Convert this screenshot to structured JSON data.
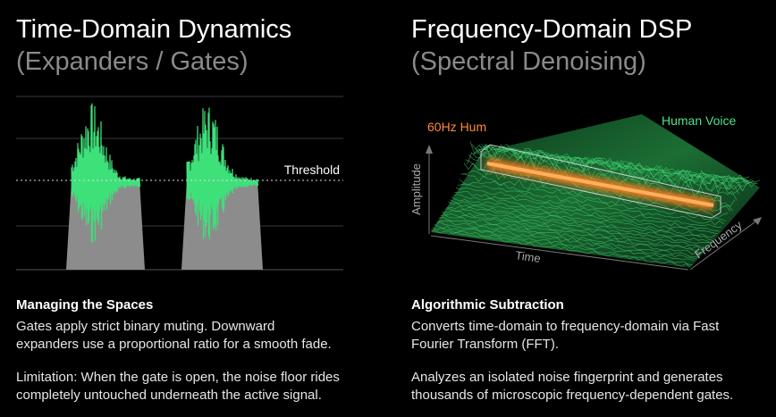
{
  "left": {
    "title": "Time-Domain Dynamics",
    "subtitle": "(Expanders / Gates)",
    "threshold_label": "Threshold",
    "heading": "Managing the Spaces",
    "paragraphs": [
      [
        "Gates apply strict binary muting. Downward",
        "expanders use a proportional ratio for a smooth fade."
      ],
      [
        "Limitation: When the gate is open, the noise floor rides",
        "completely untouched underneath the active signal."
      ]
    ]
  },
  "right": {
    "title": "Frequency-Domain DSP",
    "subtitle": "(Spectral Denoising)",
    "hum_label": "60Hz Hum",
    "voice_label": "Human Voice",
    "y_axis_label": "Amplitude",
    "x_axis_label": "Time",
    "z_axis_label": "Frequency",
    "heading": "Algorithmic Subtraction",
    "paragraphs": [
      [
        "Converts time-domain to frequency-domain via Fast",
        "Fourier Transform (FFT)."
      ],
      [
        "Analyzes an isolated noise fingerprint and generates",
        "thousands of microscopic frequency-dependent gates."
      ]
    ]
  }
}
